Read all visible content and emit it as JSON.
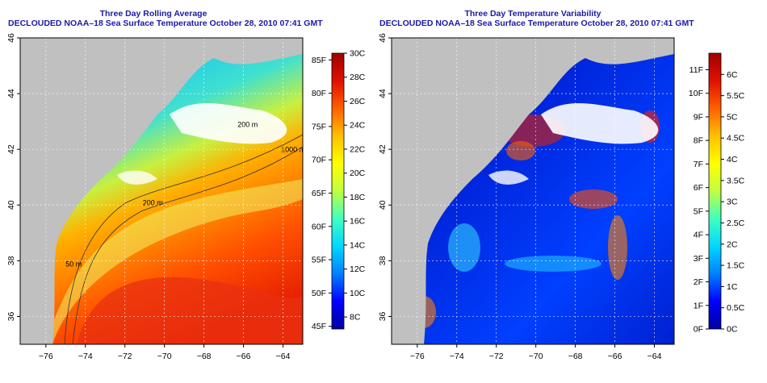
{
  "charts": {
    "left": {
      "title": "Three Day Rolling Average",
      "subtitle": "DECLOUDED NOAA–18 Sea Surface Temperature October 28, 2010 07:41 GMT"
    },
    "right": {
      "title": "Three Day Temperature Variability",
      "subtitle": "DECLOUDED NOAA–18 Sea Surface Temperature October 28, 2010 07:41 GMT"
    }
  },
  "colors": {
    "land": "#c0c0c0",
    "cloud": "#ffffff",
    "title": "#1a1aa8",
    "contour": "#333333"
  },
  "chart_data": [
    {
      "type": "heatmap",
      "title": "Three Day Rolling Average",
      "subtitle": "DECLOUDED NOAA–18 Sea Surface Temperature October 28, 2010 07:41 GMT",
      "x_ticks": [
        "−76",
        "−74",
        "−72",
        "−70",
        "−68",
        "−66",
        "−64"
      ],
      "x_values": [
        -76,
        -74,
        -72,
        -70,
        -68,
        -66,
        -64
      ],
      "y_ticks": [
        "36",
        "38",
        "40",
        "42",
        "44",
        "46"
      ],
      "y_values": [
        36,
        38,
        40,
        42,
        44,
        46
      ],
      "xlim": [
        -77.3,
        -63
      ],
      "ylim": [
        35,
        46
      ],
      "contours": [
        {
          "label": "50 m",
          "lon": -75,
          "lat": 37.8
        },
        {
          "label": "200 m",
          "lon": -71.1,
          "lat": 40.0
        },
        {
          "label": "1000 m",
          "lon": -64.1,
          "lat": 41.9
        },
        {
          "label": "200 m",
          "lon": -66.3,
          "lat": 42.8
        }
      ],
      "colorbar": {
        "range_c": [
          7,
          30
        ],
        "celsius_ticks": [
          "8C",
          "10C",
          "12C",
          "14C",
          "16C",
          "18C",
          "20C",
          "22C",
          "24C",
          "26C",
          "28C",
          "30C"
        ],
        "celsius_values": [
          8,
          10,
          12,
          14,
          16,
          18,
          20,
          22,
          24,
          26,
          28,
          30
        ],
        "fahrenheit_ticks": [
          "45F",
          "50F",
          "55F",
          "60F",
          "65F",
          "70F",
          "75F",
          "80F",
          "85F"
        ],
        "fahrenheit_values": [
          45,
          50,
          55,
          60,
          65,
          70,
          75,
          80,
          85
        ],
        "colors": [
          "#0000a0",
          "#0000ff",
          "#0080ff",
          "#00d8ff",
          "#40ffc0",
          "#c0ff40",
          "#ffff00",
          "#ffc000",
          "#ff6000",
          "#e01000",
          "#a00000"
        ]
      }
    },
    {
      "type": "heatmap",
      "title": "Three Day Temperature Variability",
      "subtitle": "DECLOUDED NOAA–18 Sea Surface Temperature October 28, 2010 07:41 GMT",
      "x_ticks": [
        "−76",
        "−74",
        "−72",
        "−70",
        "−68",
        "−66",
        "−64"
      ],
      "x_values": [
        -76,
        -74,
        -72,
        -70,
        -68,
        -66,
        -64
      ],
      "y_ticks": [
        "36",
        "38",
        "40",
        "42",
        "44",
        "46"
      ],
      "y_values": [
        36,
        38,
        40,
        42,
        44,
        46
      ],
      "xlim": [
        -77.3,
        -63
      ],
      "ylim": [
        35,
        46
      ],
      "contours": [],
      "colorbar": {
        "range_c": [
          0,
          6.5
        ],
        "celsius_ticks": [
          "0C",
          "0.5C",
          "1C",
          "1.5C",
          "2C",
          "2.5C",
          "3C",
          "3.5C",
          "4C",
          "4.5C",
          "5C",
          "5.5C",
          "6C"
        ],
        "celsius_values": [
          0,
          0.5,
          1,
          1.5,
          2,
          2.5,
          3,
          3.5,
          4,
          4.5,
          5,
          5.5,
          6
        ],
        "fahrenheit_ticks": [
          "0F",
          "1F",
          "2F",
          "3F",
          "4F",
          "5F",
          "6F",
          "7F",
          "8F",
          "9F",
          "10F",
          "11F"
        ],
        "fahrenheit_values": [
          0,
          1,
          2,
          3,
          4,
          5,
          6,
          7,
          8,
          9,
          10,
          11
        ],
        "colors": [
          "#0000a0",
          "#0000ff",
          "#0080ff",
          "#00d8ff",
          "#40ffc0",
          "#c0ff40",
          "#ffff00",
          "#ffc000",
          "#ff6000",
          "#e01000",
          "#a00000"
        ]
      }
    }
  ]
}
